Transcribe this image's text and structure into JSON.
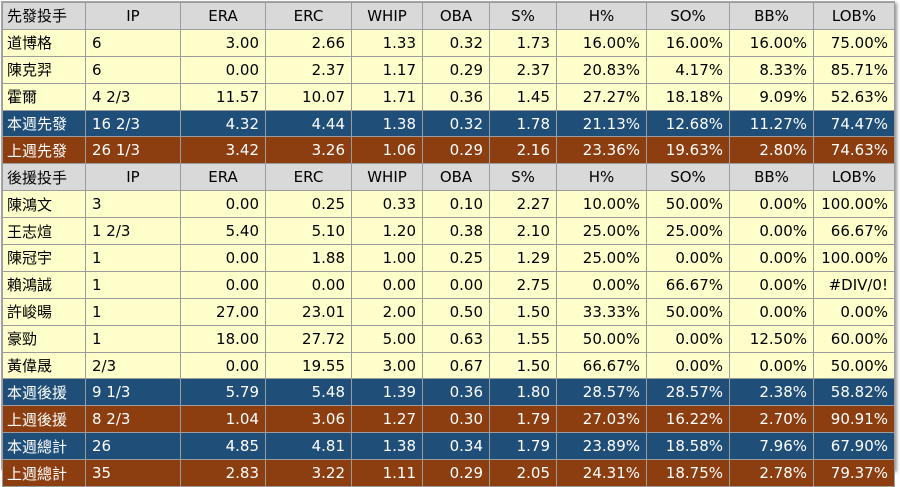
{
  "starters": {
    "header": [
      "先發投手",
      "IP",
      "ERA",
      "ERC",
      "WHIP",
      "OBA",
      "S%",
      "H%",
      "SO%",
      "BB%",
      "LOB%"
    ],
    "rows": [
      [
        "道博格",
        "6",
        "3.00",
        "2.66",
        "1.33",
        "0.32",
        "1.73",
        "16.00%",
        "16.00%",
        "16.00%",
        "75.00%"
      ],
      [
        "陳克羿",
        "6",
        "0.00",
        "2.37",
        "1.17",
        "0.29",
        "2.37",
        "20.83%",
        "4.17%",
        "8.33%",
        "85.71%"
      ],
      [
        "霍爾",
        "4 2/3",
        "11.57",
        "10.07",
        "1.71",
        "0.36",
        "1.45",
        "27.27%",
        "18.18%",
        "9.09%",
        "52.63%"
      ]
    ],
    "this_week": [
      "本週先發",
      "16 2/3",
      "4.32",
      "4.44",
      "1.38",
      "0.32",
      "1.78",
      "21.13%",
      "12.68%",
      "11.27%",
      "74.47%"
    ],
    "last_week": [
      "上週先發",
      "26 1/3",
      "3.42",
      "3.26",
      "1.06",
      "0.29",
      "2.16",
      "23.36%",
      "19.63%",
      "2.80%",
      "74.63%"
    ]
  },
  "relievers": {
    "header": [
      "後援投手",
      "IP",
      "ERA",
      "ERC",
      "WHIP",
      "OBA",
      "S%",
      "H%",
      "SO%",
      "BB%",
      "LOB%"
    ],
    "rows": [
      [
        "陳鴻文",
        "3",
        "0.00",
        "0.25",
        "0.33",
        "0.10",
        "2.27",
        "10.00%",
        "50.00%",
        "0.00%",
        "100.00%"
      ],
      [
        "王志煊",
        "1 2/3",
        "5.40",
        "5.10",
        "1.20",
        "0.38",
        "2.10",
        "25.00%",
        "25.00%",
        "0.00%",
        "66.67%"
      ],
      [
        "陳冠宇",
        "1",
        "0.00",
        "1.88",
        "1.00",
        "0.25",
        "1.29",
        "25.00%",
        "0.00%",
        "0.00%",
        "100.00%"
      ],
      [
        "賴鴻誠",
        "1",
        "0.00",
        "0.00",
        "0.00",
        "0.00",
        "2.75",
        "0.00%",
        "66.67%",
        "0.00%",
        "#DIV/0!"
      ],
      [
        "許峻暘",
        "1",
        "27.00",
        "23.01",
        "2.00",
        "0.50",
        "1.50",
        "33.33%",
        "50.00%",
        "0.00%",
        "0.00%"
      ],
      [
        "豪勁",
        "1",
        "18.00",
        "27.72",
        "5.00",
        "0.63",
        "1.55",
        "50.00%",
        "0.00%",
        "12.50%",
        "60.00%"
      ],
      [
        "黃偉晟",
        "  2/3",
        "0.00",
        "19.55",
        "3.00",
        "0.67",
        "1.50",
        "66.67%",
        "0.00%",
        "0.00%",
        "50.00%"
      ]
    ],
    "this_week": [
      "本週後援",
      "9 1/3",
      "5.79",
      "5.48",
      "1.39",
      "0.36",
      "1.80",
      "28.57%",
      "28.57%",
      "2.38%",
      "58.82%"
    ],
    "last_week": [
      "上週後援",
      "8 2/3",
      "1.04",
      "3.06",
      "1.27",
      "0.30",
      "1.79",
      "27.03%",
      "16.22%",
      "2.70%",
      "90.91%"
    ]
  },
  "totals": {
    "this_week": [
      "本週總計",
      "26",
      "4.85",
      "4.81",
      "1.38",
      "0.34",
      "1.79",
      "23.89%",
      "18.58%",
      "7.96%",
      "67.90%"
    ],
    "last_week": [
      "上週總計",
      "35",
      "2.83",
      "3.22",
      "1.11",
      "0.29",
      "2.05",
      "24.31%",
      "18.75%",
      "2.78%",
      "79.37%"
    ]
  },
  "colors": {
    "header_bg": "#d9d9d9",
    "row_bg": "#ffffcc",
    "this_week_bg": "#1f4e79",
    "last_week_bg": "#8d3e10",
    "summary_text": "#ffffff"
  }
}
